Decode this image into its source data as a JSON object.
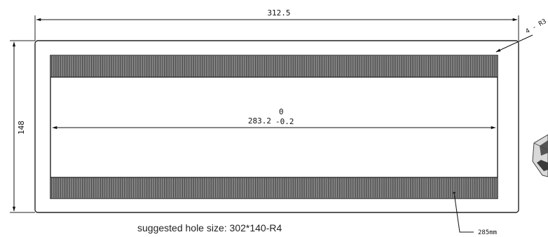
{
  "dimensions": {
    "width": "312.5",
    "height": "148",
    "inner_width": "283.2",
    "tolerance_upper": "0",
    "tolerance_lower": "-0.2",
    "corner_radius": "4 - R3",
    "bottom_note": "285mm"
  },
  "caption": "suggested hole size: 302*140-R4"
}
